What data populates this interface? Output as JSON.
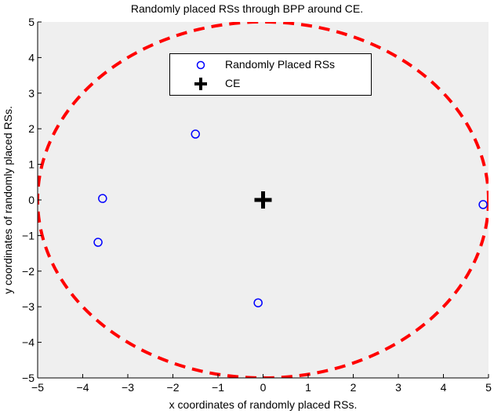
{
  "chart_data": {
    "type": "scatter",
    "title": "Randomly placed RSs through BPP around CE.",
    "xlabel": "x coordinates of randomly placed RSs.",
    "ylabel": "y coordinates of randomly placed RSs.",
    "xlim": [
      -5,
      5
    ],
    "ylim": [
      -5,
      5
    ],
    "xticks": [
      -5,
      -4,
      -3,
      -2,
      -1,
      0,
      1,
      2,
      3,
      4,
      5
    ],
    "yticks": [
      -5,
      -4,
      -3,
      -2,
      -1,
      0,
      1,
      2,
      3,
      4,
      5
    ],
    "grid": false,
    "legend_position": "upper center",
    "series": [
      {
        "name": "Randomly Placed RSs",
        "marker": "circle-open",
        "color": "#0000ff",
        "points": [
          {
            "x": -3.56,
            "y": 0.04
          },
          {
            "x": -3.66,
            "y": -1.19
          },
          {
            "x": -1.5,
            "y": 1.85
          },
          {
            "x": -0.11,
            "y": -2.89
          },
          {
            "x": 4.88,
            "y": -0.13
          }
        ]
      },
      {
        "name": "CE",
        "marker": "plus-bold",
        "color": "#000000",
        "points": [
          {
            "x": 0,
            "y": 0
          }
        ]
      }
    ],
    "annotations": [
      {
        "type": "circle",
        "center": [
          0,
          0
        ],
        "radius": 5,
        "style": "dashed",
        "color": "#ff0000"
      }
    ]
  },
  "legend": {
    "items": [
      {
        "label": "Randomly Placed RSs"
      },
      {
        "label": "CE"
      }
    ]
  },
  "colors": {
    "plot_background": "#efefef",
    "rs_marker": "#0000ff",
    "ce_marker": "#000000",
    "boundary": "#ff0000"
  }
}
